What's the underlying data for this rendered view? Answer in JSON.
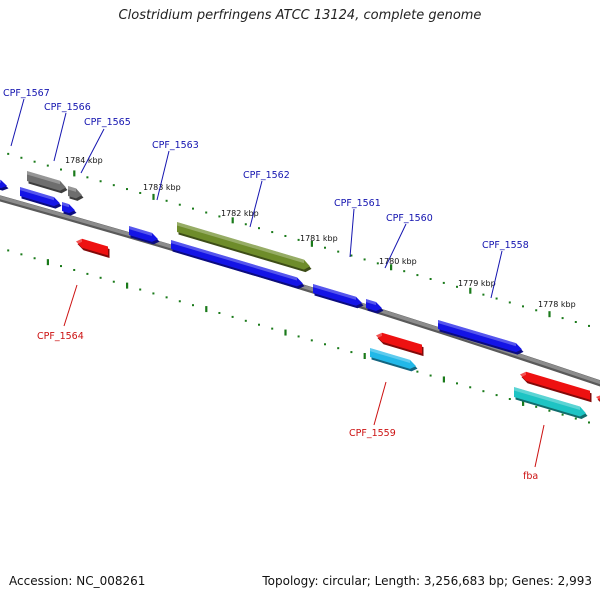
{
  "title": "Clostridium perfringens ATCC 13124, complete genome",
  "footer": {
    "accession": "Accession: NC_008261",
    "stats": "Topology: circular; Length: 3,256,683 bp; Genes: 2,993"
  },
  "colors": {
    "backbone": "#8c8c8c",
    "forward_gene": "#1414e6",
    "reverse_gene": "#ee1111",
    "rna_forward": "#6e6e6e",
    "cds_feature": "#6e8c2a",
    "rna_reverse": "#22b8e8",
    "rna_teal": "#1ec4c4",
    "tick": "#1a7a1a",
    "label_forward": "#1515b0",
    "label_reverse": "#cc1111"
  },
  "scale": {
    "tick_labels": [
      "1784 kbp",
      "1783 kbp",
      "1782 kbp",
      "1781 kbp",
      "1780 kbp",
      "1779 kbp",
      "1778 kbp"
    ]
  },
  "labels_forward": [
    "CPF_1567",
    "CPF_1566",
    "CPF_1565",
    "CPF_1563",
    "CPF_1562",
    "CPF_1561",
    "CPF_1560",
    "CPF_1558"
  ],
  "labels_reverse": [
    "CPF_1564",
    "CPF_1559",
    "fba"
  ]
}
